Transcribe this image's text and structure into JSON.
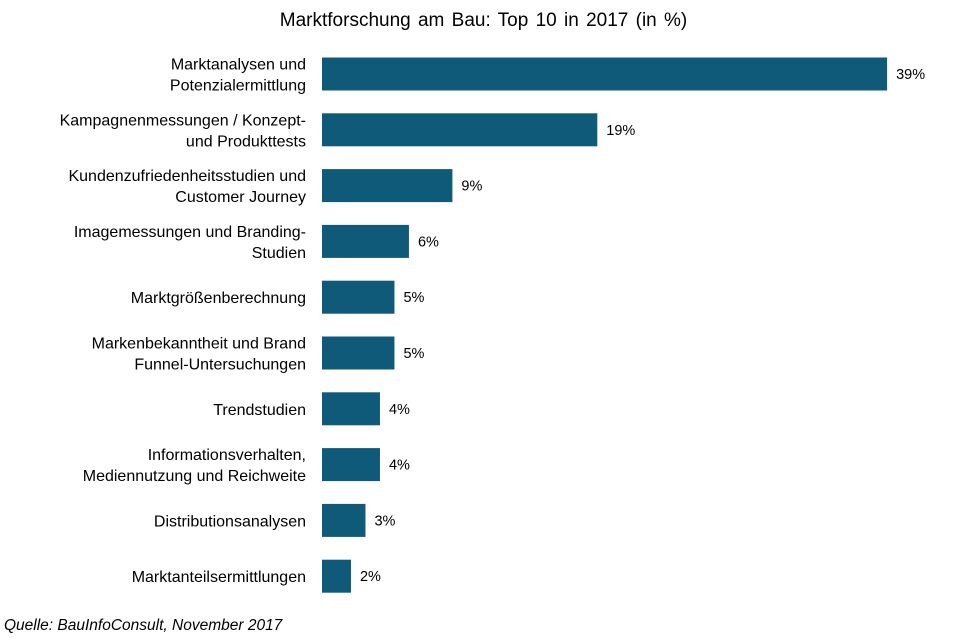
{
  "chart_data": {
    "type": "bar",
    "orientation": "horizontal",
    "title": "Marktforschung am Bau: Top 10 in 2017 (in %)",
    "xlabel": "",
    "ylabel": "",
    "unit": "%",
    "grid": false,
    "categories": [
      [
        "Marktanalysen und",
        "Potenzialermittlung"
      ],
      [
        "Kampagnenmessungen / Konzept-",
        "und Produkttests"
      ],
      [
        "Kundenzufriedenheitsstudien und",
        "Customer Journey"
      ],
      [
        "Imagemessungen und Branding-",
        "Studien"
      ],
      [
        "Marktgrößenberechnung"
      ],
      [
        "Markenbekanntheit und Brand",
        "Funnel-Untersuchungen"
      ],
      [
        "Trendstudien"
      ],
      [
        "Informationsverhalten,",
        "Mediennutzung und Reichweite"
      ],
      [
        "Distributionsanalysen"
      ],
      [
        "Marktanteilsermittlungen"
      ]
    ],
    "values": [
      39,
      19,
      9,
      6,
      5,
      5,
      4,
      4,
      3,
      2
    ],
    "data_labels": [
      "39%",
      "19%",
      "9%",
      "6%",
      "5%",
      "5%",
      "4%",
      "4%",
      "3%",
      "2%"
    ],
    "bar_color": "#0f5a78"
  },
  "source": "Quelle: BauInfoConsult, November 2017"
}
